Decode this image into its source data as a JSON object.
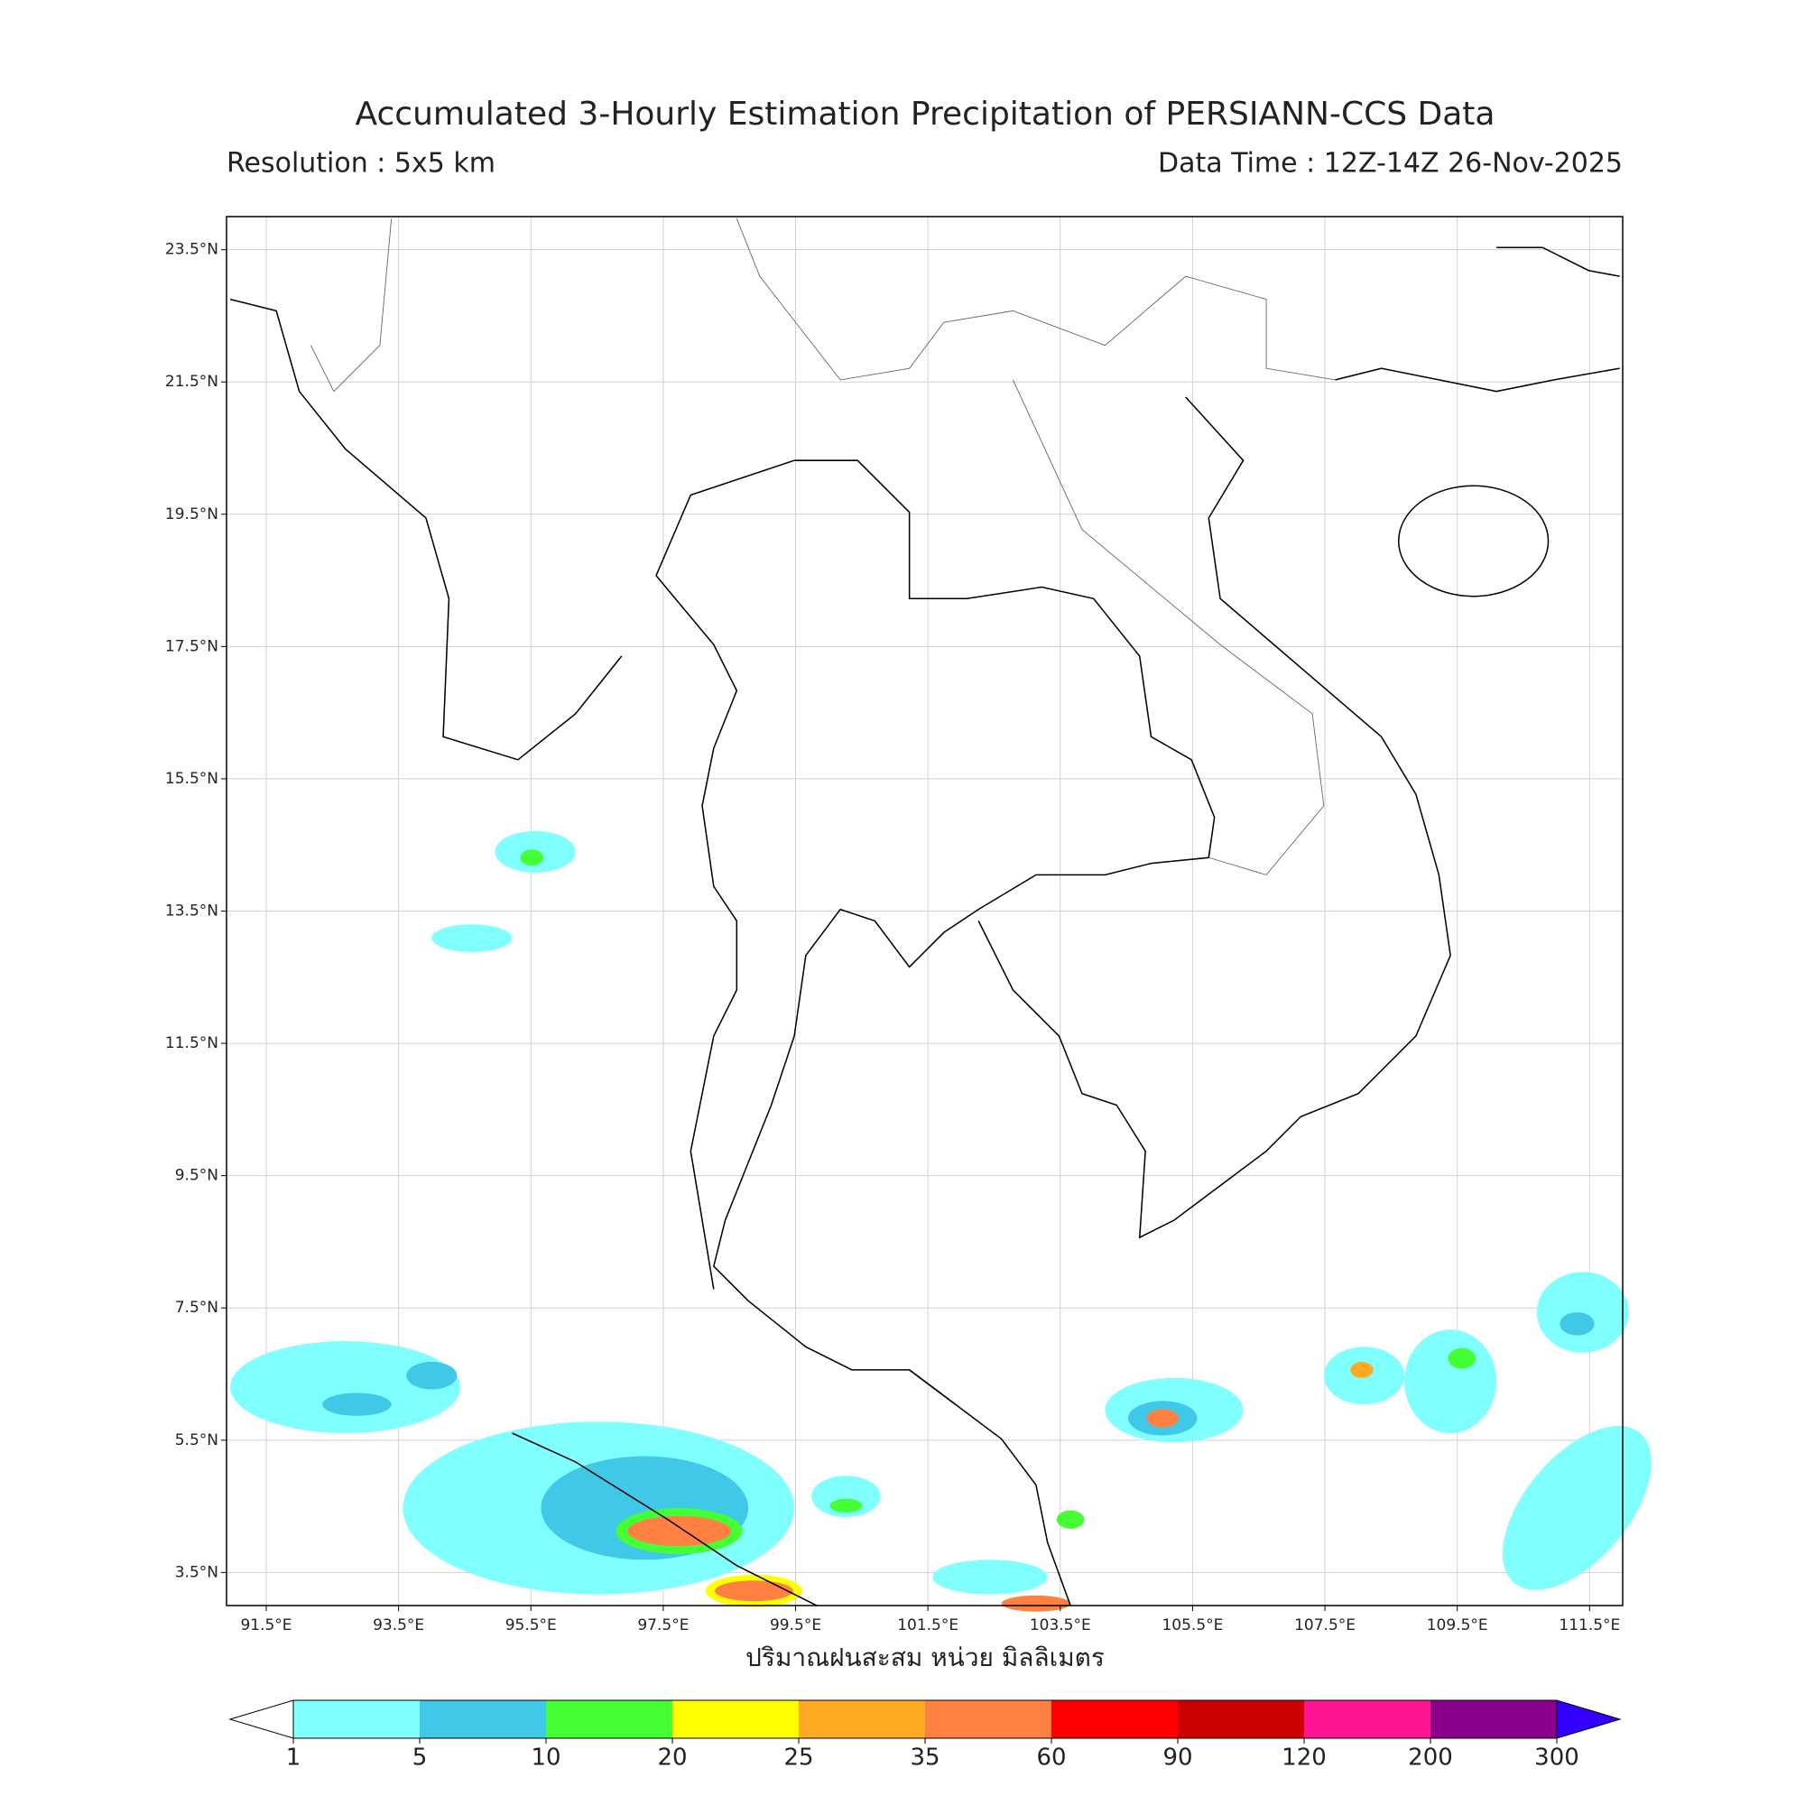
{
  "title": "Accumulated 3-Hourly Estimation Precipitation of PERSIANN-CCS Data",
  "resolution": "Resolution : 5x5 km",
  "data_time": "Data Time : 12Z-14Z 26-Nov-2025",
  "map": {
    "xlim": [
      90.9,
      112.0
    ],
    "ylim": [
      3.0,
      24.0
    ],
    "xticks": [
      {
        "value": 91.5,
        "label": "91.5°E"
      },
      {
        "value": 93.5,
        "label": "93.5°E"
      },
      {
        "value": 95.5,
        "label": "95.5°E"
      },
      {
        "value": 97.5,
        "label": "97.5°E"
      },
      {
        "value": 99.5,
        "label": "99.5°E"
      },
      {
        "value": 101.5,
        "label": "101.5°E"
      },
      {
        "value": 103.5,
        "label": "103.5°E"
      },
      {
        "value": 105.5,
        "label": "105.5°E"
      },
      {
        "value": 107.5,
        "label": "107.5°E"
      },
      {
        "value": 109.5,
        "label": "109.5°E"
      },
      {
        "value": 111.5,
        "label": "111.5°E"
      }
    ],
    "yticks": [
      {
        "value": 3.5,
        "label": "3.5°N"
      },
      {
        "value": 5.5,
        "label": "5.5°N"
      },
      {
        "value": 7.5,
        "label": "7.5°N"
      },
      {
        "value": 9.5,
        "label": "9.5°N"
      },
      {
        "value": 11.5,
        "label": "11.5°N"
      },
      {
        "value": 13.5,
        "label": "13.5°N"
      },
      {
        "value": 15.5,
        "label": "15.5°N"
      },
      {
        "value": 17.5,
        "label": "17.5°N"
      },
      {
        "value": 19.5,
        "label": "19.5°N"
      },
      {
        "value": 21.5,
        "label": "21.5°N"
      },
      {
        "value": 23.5,
        "label": "23.5°N"
      }
    ],
    "grid": true,
    "xlabel": "ปริมาณฝนสะสม หน่วย มิลลิเมตร"
  },
  "colorbar": {
    "bounds": [
      1,
      5,
      10,
      20,
      25,
      35,
      60,
      90,
      120,
      200,
      300
    ],
    "colors": [
      "#80ffff",
      "#40c8e8",
      "#44ff33",
      "#ffff00",
      "#ffaa22",
      "#ff8040",
      "#ff0000",
      "#cc0000",
      "#ff1493",
      "#8b008b"
    ],
    "under_color": "#ffffff",
    "over_color": "#3300ff"
  }
}
